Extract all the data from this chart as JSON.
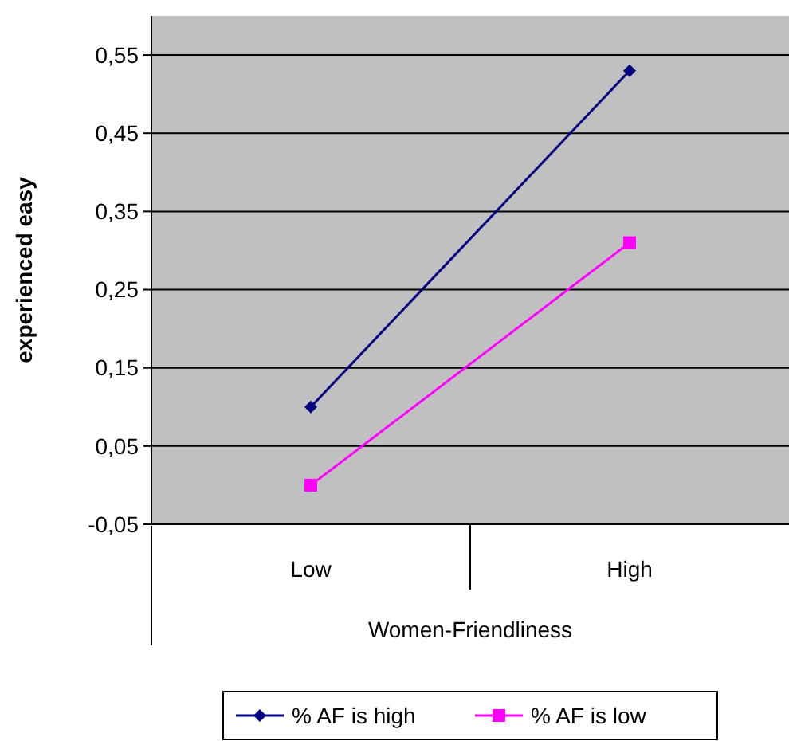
{
  "chart_data": {
    "type": "line",
    "ylabel": "experienced easy",
    "xlabel": "Women-Friendliness",
    "categories": [
      "Low",
      "High"
    ],
    "series": [
      {
        "name": "% AF is high",
        "color": "#000080",
        "values": [
          0.1,
          0.53
        ],
        "marker": "diamond"
      },
      {
        "name": "% AF is low",
        "color": "#ff00ff",
        "values": [
          0.0,
          0.31
        ],
        "marker": "square"
      }
    ],
    "ylim": [
      -0.05,
      0.6
    ],
    "yticks": [
      {
        "value": -0.05,
        "label": "-0,05"
      },
      {
        "value": 0.05,
        "label": "0,05"
      },
      {
        "value": 0.15,
        "label": "0,15"
      },
      {
        "value": 0.25,
        "label": "0,25"
      },
      {
        "value": 0.35,
        "label": "0,35"
      },
      {
        "value": 0.45,
        "label": "0,45"
      },
      {
        "value": 0.55,
        "label": "0,55"
      }
    ],
    "grid": "y",
    "legend": "bottom"
  }
}
